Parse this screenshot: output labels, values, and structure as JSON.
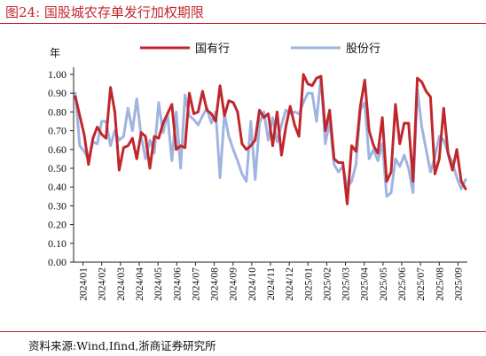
{
  "header": {
    "title": "图24:   国股城农存单发行加权期限"
  },
  "footer": {
    "source": "资料来源:Wind,Ifind,浙商证券研究所"
  },
  "colors": {
    "series1": "#c0272d",
    "series2": "#9fb4e0",
    "accent": "#c0272d"
  },
  "chart_data": {
    "type": "line",
    "ylabel": "年",
    "ylim": [
      0.0,
      1.0
    ],
    "yticks": [
      "0.00",
      "0.10",
      "0.20",
      "0.30",
      "0.40",
      "0.50",
      "0.60",
      "0.70",
      "0.80",
      "0.90",
      "1.00"
    ],
    "xticks": [
      "2024/01",
      "2024/02",
      "2024/03",
      "2024/04",
      "2024/05",
      "2024/06",
      "2024/07",
      "2024/08",
      "2024/09",
      "2024/10",
      "2024/11",
      "2024/12",
      "2025/01",
      "2025/02",
      "2025/03",
      "2025/04",
      "2025/05",
      "2025/06",
      "2025/07",
      "2025/08",
      "2025/09"
    ],
    "legend": {
      "placement": "top"
    },
    "series": [
      {
        "name": "国有行",
        "values": [
          0.88,
          0.78,
          0.68,
          0.52,
          0.66,
          0.72,
          0.68,
          0.66,
          0.93,
          0.8,
          0.49,
          0.61,
          0.62,
          0.66,
          0.55,
          0.69,
          0.67,
          0.5,
          0.67,
          0.66,
          0.74,
          0.79,
          0.84,
          0.6,
          0.62,
          0.61,
          0.9,
          0.79,
          0.8,
          0.91,
          0.81,
          0.79,
          0.75,
          0.94,
          0.78,
          0.86,
          0.85,
          0.8,
          0.63,
          0.6,
          0.62,
          0.65,
          0.81,
          0.77,
          0.79,
          0.62,
          0.8,
          0.57,
          0.72,
          0.83,
          0.73,
          0.67,
          1.0,
          0.95,
          0.94,
          0.98,
          0.99,
          0.7,
          0.81,
          0.55,
          0.53,
          0.53,
          0.31,
          0.62,
          0.59,
          0.83,
          0.97,
          0.7,
          0.62,
          0.58,
          0.77,
          0.43,
          0.48,
          0.84,
          0.63,
          0.74,
          0.74,
          0.43,
          0.98,
          0.96,
          0.91,
          0.88,
          0.47,
          0.55,
          0.82,
          0.58,
          0.49,
          0.6,
          0.43,
          0.39
        ]
      },
      {
        "name": "股份行",
        "values": [
          0.9,
          0.62,
          0.59,
          0.55,
          0.64,
          0.63,
          0.75,
          0.75,
          0.62,
          0.7,
          0.65,
          0.67,
          0.82,
          0.7,
          0.87,
          0.67,
          0.55,
          0.65,
          0.58,
          0.85,
          0.69,
          0.79,
          0.54,
          0.8,
          0.5,
          0.89,
          0.78,
          0.76,
          0.73,
          0.78,
          0.82,
          0.74,
          0.8,
          0.45,
          0.79,
          0.67,
          0.6,
          0.54,
          0.47,
          0.43,
          0.75,
          0.44,
          0.74,
          0.8,
          0.65,
          0.77,
          0.64,
          0.73,
          0.81,
          0.79,
          0.8,
          0.79,
          0.85,
          0.9,
          0.9,
          0.75,
          0.99,
          0.63,
          0.75,
          0.52,
          0.48,
          0.51,
          0.4,
          0.43,
          0.52,
          0.81,
          0.85,
          0.55,
          0.6,
          0.54,
          0.63,
          0.35,
          0.37,
          0.55,
          0.51,
          0.57,
          0.5,
          0.37,
          0.92,
          0.72,
          0.6,
          0.48,
          0.56,
          0.67,
          0.65,
          0.58,
          0.53,
          0.45,
          0.39,
          0.44
        ]
      }
    ]
  }
}
